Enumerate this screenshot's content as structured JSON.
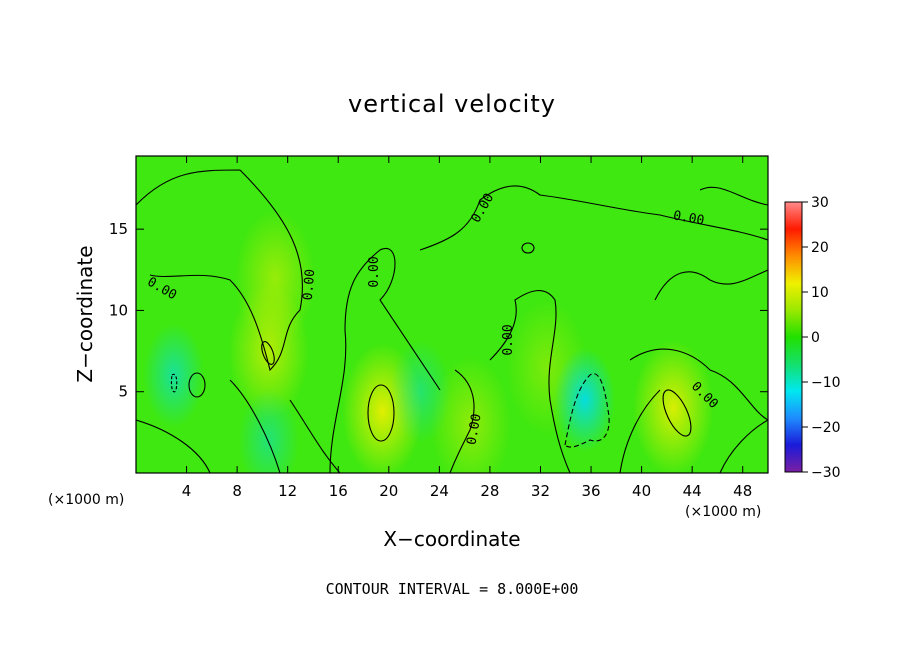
{
  "chart_data": {
    "type": "heatmap",
    "title": "vertical velocity",
    "xlabel": "X−coordinate",
    "ylabel": "Z−coordinate",
    "x_unit_left": "(×1000 m)",
    "x_unit_right": "(×1000 m)",
    "xlim": [
      0,
      50
    ],
    "ylim": [
      0,
      19.5
    ],
    "x_ticks": [
      4,
      8,
      12,
      16,
      20,
      24,
      28,
      32,
      36,
      40,
      44,
      48
    ],
    "y_ticks": [
      5,
      10,
      15
    ],
    "grid": false,
    "colorbar": {
      "min": -30,
      "max": 30,
      "ticks": [
        30,
        20,
        10,
        0,
        -10,
        -20,
        -30
      ],
      "tick_labels": [
        "30",
        "20",
        "10",
        "0",
        "−10",
        "−20",
        "−30"
      ],
      "colormap": [
        "#7a1fa2",
        "#1b1bd9",
        "#1e8cff",
        "#00e8f0",
        "#14e06b",
        "#22e000",
        "#9be800",
        "#f0f000",
        "#ff8c00",
        "#ff1a00",
        "#ff8a8a"
      ]
    },
    "background_value": 0,
    "features": [
      {
        "x": 19.5,
        "z": 3.8,
        "w": 0.8
      },
      {
        "x": 42.5,
        "z": 4.0,
        "w": 0.75
      },
      {
        "x": 10.5,
        "z": 7.5,
        "w": 0.55
      },
      {
        "x": 11.0,
        "z": 12.0,
        "w": 0.4
      },
      {
        "x": 26.5,
        "z": 3.0,
        "w": 0.35
      },
      {
        "x": 32.5,
        "z": 6.5,
        "w": 0.25
      },
      {
        "x": 35.5,
        "z": 4.5,
        "w": -0.8
      },
      {
        "x": 3.0,
        "z": 6.0,
        "w": -0.5
      },
      {
        "x": 22.5,
        "z": 5.0,
        "w": -0.3
      },
      {
        "x": 10.5,
        "z": 2.0,
        "w": -0.35
      }
    ],
    "contour_labels": [
      "0.00",
      "0.00",
      "0.00",
      "0.00",
      "0.00",
      "0.00",
      "0.00",
      "0.00"
    ],
    "contour_interval_label": "CONTOUR INTERVAL = 8.000E+00"
  }
}
